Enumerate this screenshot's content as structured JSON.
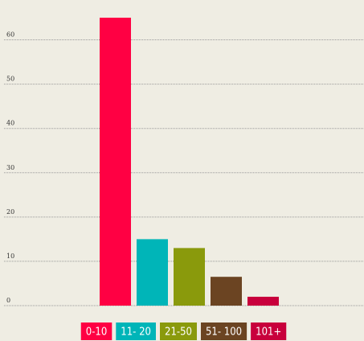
{
  "chart_data": {
    "type": "bar",
    "categories": [
      "0-10",
      "11- 20",
      "21-50",
      "51- 100",
      "101+"
    ],
    "values": [
      65,
      15,
      13,
      6.5,
      2
    ],
    "colors": [
      "#ff0043",
      "#00b5b8",
      "#8a9a0c",
      "#6b4422",
      "#c8003c"
    ],
    "ylim": [
      0,
      65
    ],
    "yticks": [
      0,
      10,
      20,
      30,
      40,
      50,
      60
    ],
    "grid": true
  }
}
